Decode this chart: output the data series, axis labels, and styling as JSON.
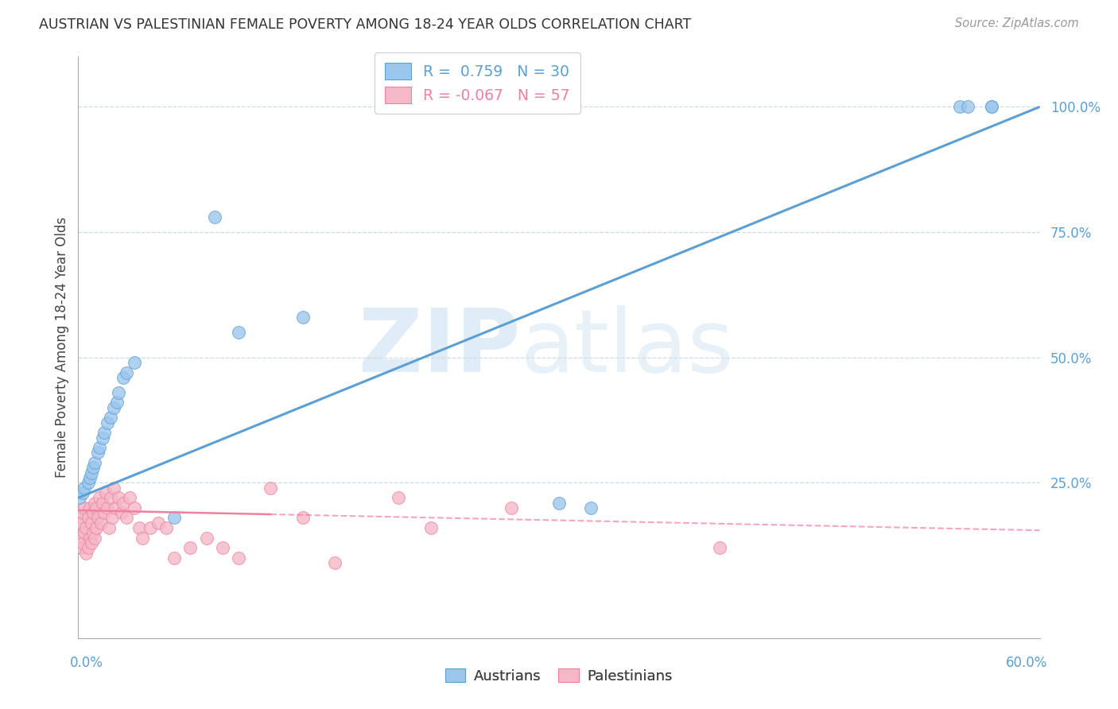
{
  "title": "AUSTRIAN VS PALESTINIAN FEMALE POVERTY AMONG 18-24 YEAR OLDS CORRELATION CHART",
  "source": "Source: ZipAtlas.com",
  "ylabel": "Female Poverty Among 18-24 Year Olds",
  "legend_r_austrians": "0.759",
  "legend_n_austrians": "30",
  "legend_r_palestinians": "-0.067",
  "legend_n_palestinians": "57",
  "color_austrians": "#9dc6ed",
  "color_palestinians": "#f4b8c8",
  "color_austrians_line": "#5b9fd4",
  "color_palestinians_line": "#f080a0",
  "background_color": "#ffffff",
  "xlim": [
    0.0,
    0.6
  ],
  "ylim": [
    -0.06,
    1.1
  ],
  "grid_color": "#c8dce8",
  "austrians_x": [
    0.001,
    0.003,
    0.004,
    0.006,
    0.007,
    0.008,
    0.009,
    0.01,
    0.012,
    0.013,
    0.015,
    0.016,
    0.018,
    0.02,
    0.022,
    0.024,
    0.025,
    0.028,
    0.03,
    0.035,
    0.06,
    0.085,
    0.1,
    0.14,
    0.3,
    0.32,
    0.55,
    0.57,
    0.57,
    0.555
  ],
  "austrians_y": [
    0.22,
    0.23,
    0.24,
    0.25,
    0.26,
    0.27,
    0.28,
    0.29,
    0.31,
    0.32,
    0.34,
    0.35,
    0.37,
    0.38,
    0.4,
    0.41,
    0.43,
    0.46,
    0.47,
    0.49,
    0.18,
    0.78,
    0.55,
    0.58,
    0.21,
    0.2,
    1.0,
    1.0,
    1.0,
    1.0
  ],
  "palestinians_x": [
    0.001,
    0.001,
    0.002,
    0.002,
    0.003,
    0.003,
    0.004,
    0.004,
    0.005,
    0.005,
    0.006,
    0.006,
    0.007,
    0.007,
    0.008,
    0.008,
    0.009,
    0.009,
    0.01,
    0.01,
    0.011,
    0.011,
    0.012,
    0.013,
    0.014,
    0.015,
    0.016,
    0.017,
    0.018,
    0.019,
    0.02,
    0.021,
    0.022,
    0.023,
    0.025,
    0.027,
    0.028,
    0.03,
    0.032,
    0.035,
    0.038,
    0.04,
    0.045,
    0.05,
    0.055,
    0.06,
    0.07,
    0.08,
    0.09,
    0.1,
    0.12,
    0.14,
    0.16,
    0.2,
    0.22,
    0.27,
    0.4
  ],
  "palestinians_y": [
    0.14,
    0.18,
    0.12,
    0.17,
    0.13,
    0.19,
    0.15,
    0.2,
    0.11,
    0.16,
    0.12,
    0.18,
    0.14,
    0.2,
    0.13,
    0.17,
    0.15,
    0.19,
    0.14,
    0.21,
    0.16,
    0.2,
    0.18,
    0.22,
    0.17,
    0.21,
    0.19,
    0.23,
    0.2,
    0.16,
    0.22,
    0.18,
    0.24,
    0.2,
    0.22,
    0.19,
    0.21,
    0.18,
    0.22,
    0.2,
    0.16,
    0.14,
    0.16,
    0.17,
    0.16,
    0.1,
    0.12,
    0.14,
    0.12,
    0.1,
    0.24,
    0.18,
    0.09,
    0.22,
    0.16,
    0.2,
    0.12
  ],
  "austrians_trendline_x": [
    0.0,
    0.6
  ],
  "austrians_trendline_y": [
    0.22,
    1.0
  ],
  "palestinians_trendline_x": [
    0.0,
    0.6
  ],
  "palestinians_trendline_y": [
    0.195,
    0.155
  ]
}
